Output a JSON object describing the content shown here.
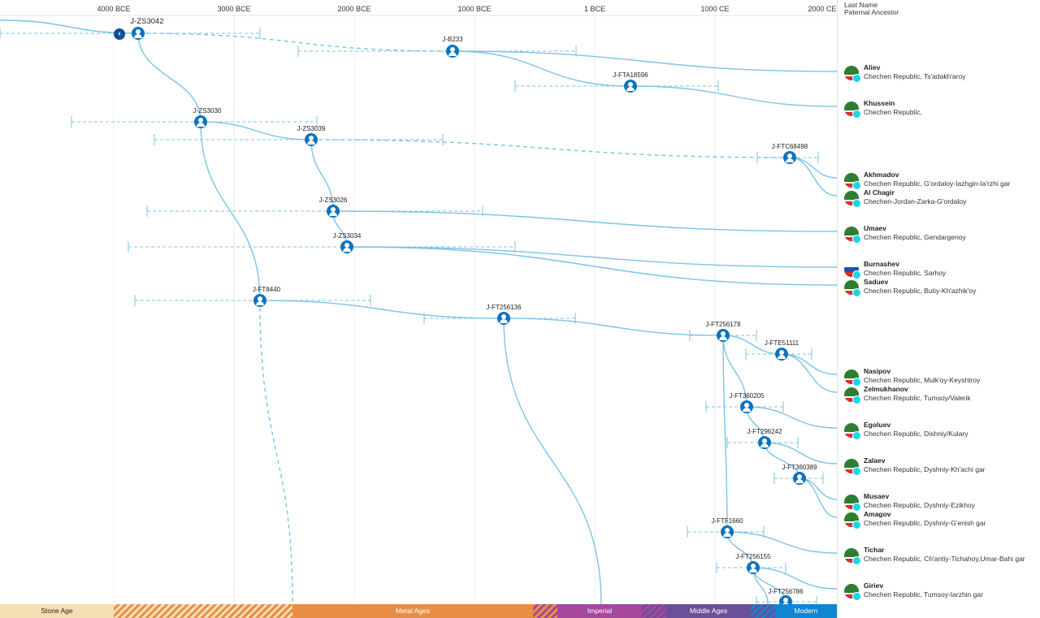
{
  "header": {
    "axis_ticks": [
      "4000 BCE",
      "3000 BCE",
      "2000 BCE",
      "1000 BCE",
      "1 BCE",
      "1000 CE",
      "2000 CE"
    ],
    "col_title": "Last Name",
    "col_subtitle": "Paternal Ancestor"
  },
  "colors": {
    "node": "#0a73be",
    "branch": "#7cc3e6",
    "nav_button": "#0d4f9a",
    "haplogroup_dot": "#19d6e6"
  },
  "nodes": [
    {
      "id": "root",
      "label": "J-ZS3042"
    },
    {
      "id": "b233",
      "label": "J-B233"
    },
    {
      "id": "fta18596",
      "label": "J-FTA18596"
    },
    {
      "id": "zs3030",
      "label": "J-ZS3030"
    },
    {
      "id": "zs3039",
      "label": "J-ZS3039"
    },
    {
      "id": "ftc68498",
      "label": "J-FTC68498"
    },
    {
      "id": "zs3026",
      "label": "J-ZS3026"
    },
    {
      "id": "zs3034",
      "label": "J-ZS3034"
    },
    {
      "id": "ft8440",
      "label": "J-FT8440"
    },
    {
      "id": "ft256136",
      "label": "J-FT256136"
    },
    {
      "id": "ft256178",
      "label": "J-FT256178"
    },
    {
      "id": "fte51111",
      "label": "J-FTE51111"
    },
    {
      "id": "ft360205",
      "label": "J-FT360205"
    },
    {
      "id": "ft296242",
      "label": "J-FT296242"
    },
    {
      "id": "ft360389",
      "label": "J-FT360389"
    },
    {
      "id": "ftf1660",
      "label": "J-FTF1660"
    },
    {
      "id": "ft256155",
      "label": "J-FT256155"
    },
    {
      "id": "ft256786",
      "label": "J-FT256786"
    }
  ],
  "people": [
    {
      "last_name": "Aliev",
      "location": "Chechen Republic, Ts'adakh'aroy",
      "flag": "chechen"
    },
    {
      "last_name": "Khussein",
      "location": "Chechen Republic,",
      "flag": "chechen"
    },
    {
      "last_name": "Akhmadov",
      "location": "Chechen Republic, G'ordaloy-Iazhgin-Ia'rzhi gar",
      "flag": "chechen"
    },
    {
      "last_name": "Al Chagir",
      "location": "Chechen-Jordan-Zarka-G'ordaloy",
      "flag": "chechen"
    },
    {
      "last_name": "Umaev",
      "location": "Chechen Republic, Gendargenoy",
      "flag": "chechen"
    },
    {
      "last_name": "Burnashev",
      "location": "Chechen Republic, Sarhoy",
      "flag": "russia"
    },
    {
      "last_name": "Saduev",
      "location": "Chechen Republic, Butiy-Kh'azhik'oy",
      "flag": "chechen"
    },
    {
      "last_name": "Nasipov",
      "location": "Chechen Republic, Mulk'oy-Keyshtroy",
      "flag": "chechen"
    },
    {
      "last_name": "Zelmukhanov",
      "location": "Chechen Republic, Tumsoy/Valerik",
      "flag": "chechen"
    },
    {
      "last_name": "Egoluev",
      "location": "Chechen Republic, Dishniy/Kulary",
      "flag": "chechen"
    },
    {
      "last_name": "Zalaev",
      "location": "Chechen Republic, Dyshniy-Kh'achi gar",
      "flag": "chechen"
    },
    {
      "last_name": "Musaev",
      "location": "Chechen Republic, Dyshniy-Ezikhoy",
      "flag": "chechen"
    },
    {
      "last_name": "Amagov",
      "location": "Chechen Republic, Dyshniy-G'enish gar",
      "flag": "chechen"
    },
    {
      "last_name": "Tichar",
      "location": "Chechen Republic, Ch'antiy-Tichahoy,Umar-Bahi gar",
      "flag": "chechen"
    },
    {
      "last_name": "Giriev",
      "location": "Chechen Republic, Tumsoy-Iarzhin gar",
      "flag": "chechen"
    }
  ],
  "eras": [
    {
      "label": "Stone Age",
      "color": "#f6deb4"
    },
    {
      "label": "Metal Ages",
      "color": "#e88d45"
    },
    {
      "label": "Imperial",
      "color": "#a4479d"
    },
    {
      "label": "Middle Ages",
      "color": "#6a4f9a"
    },
    {
      "label": "Modern",
      "color": "#1185d2"
    }
  ]
}
